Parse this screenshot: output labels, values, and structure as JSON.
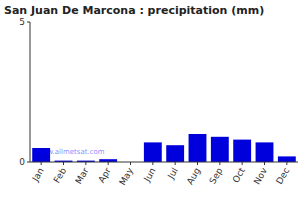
{
  "chart_data": {
    "type": "bar",
    "title": "San Juan De Marcona : precipitation (mm)",
    "categories": [
      "Jan",
      "Feb",
      "Mar",
      "Apr",
      "May",
      "Jun",
      "Jul",
      "Aug",
      "Sep",
      "Oct",
      "Nov",
      "Dec"
    ],
    "values": [
      0.5,
      0.05,
      0.05,
      0.1,
      0.0,
      0.7,
      0.6,
      1.0,
      0.9,
      0.8,
      0.7,
      0.2
    ],
    "color": "#0000dd",
    "ylim": [
      0,
      5
    ],
    "yticks": [
      0,
      5
    ],
    "grid": false,
    "annotations": [
      "www.allmetsat.com"
    ]
  }
}
